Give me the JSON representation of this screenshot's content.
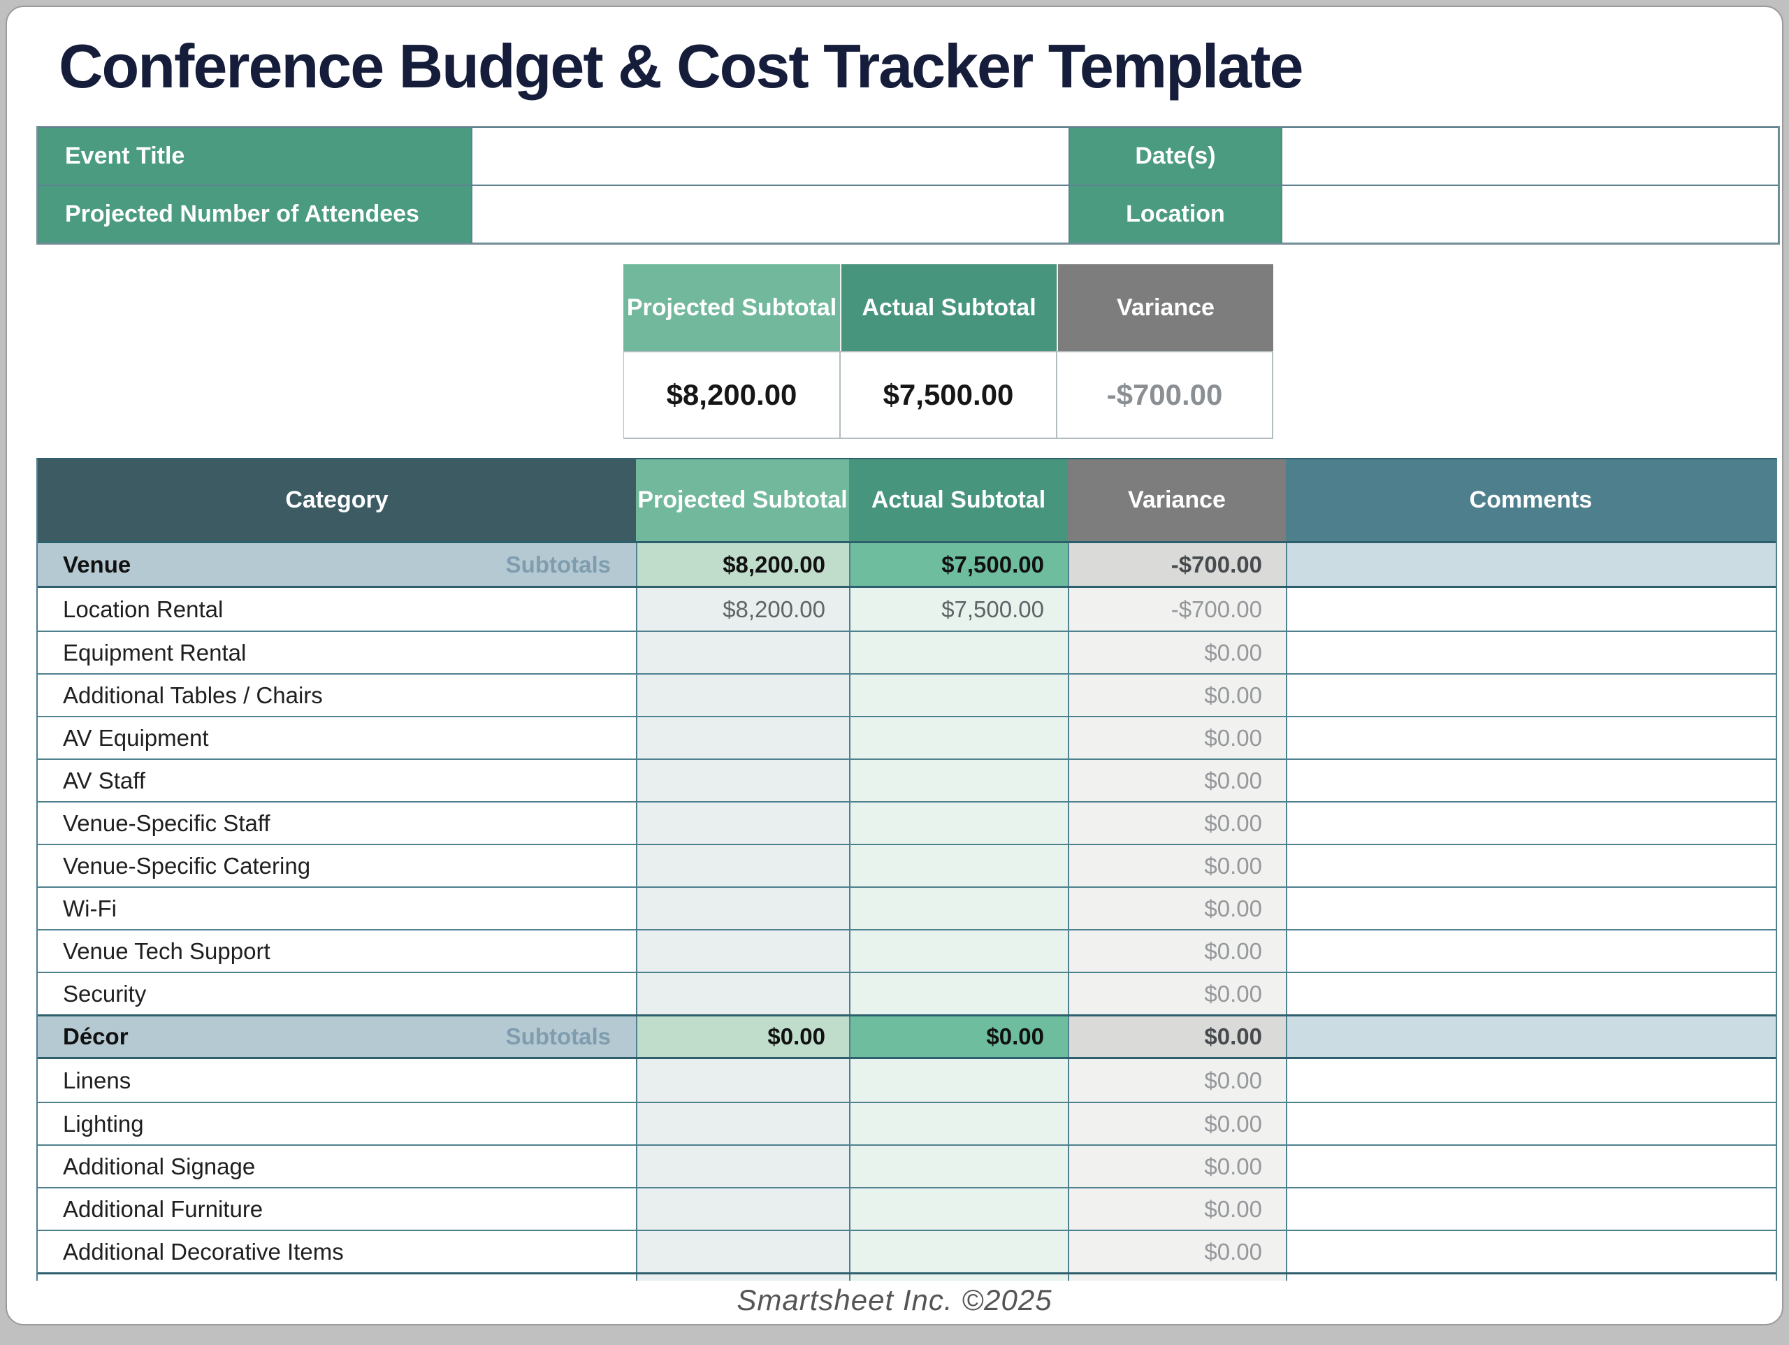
{
  "page": {
    "title": "Conference Budget & Cost Tracker Template",
    "footer": "Smartsheet Inc. ©2025"
  },
  "info": {
    "event_title_label": "Event Title",
    "event_title_value": "",
    "dates_label": "Date(s)",
    "dates_value": "",
    "attendees_label": "Projected Number of Attendees",
    "attendees_value": "",
    "location_label": "Location",
    "location_value": ""
  },
  "summary": {
    "headers": {
      "projected": "Projected Subtotal",
      "actual": "Actual Subtotal",
      "variance": "Variance"
    },
    "values": {
      "projected": "$8,200.00",
      "actual": "$7,500.00",
      "variance": "-$700.00"
    }
  },
  "main_table": {
    "headers": {
      "category": "Category",
      "projected": "Projected Subtotal",
      "actual": "Actual Subtotal",
      "variance": "Variance",
      "comments": "Comments"
    },
    "subtotals_label": "Subtotals",
    "rows": [
      {
        "type": "subtotal",
        "category": "Venue",
        "projected": "$8,200.00",
        "actual": "$7,500.00",
        "variance": "-$700.00",
        "comments": ""
      },
      {
        "type": "item",
        "category": "Location Rental",
        "projected": "$8,200.00",
        "actual": "$7,500.00",
        "variance": "-$700.00",
        "comments": ""
      },
      {
        "type": "item",
        "category": "Equipment Rental",
        "projected": "",
        "actual": "",
        "variance": "$0.00",
        "comments": ""
      },
      {
        "type": "item",
        "category": "Additional Tables / Chairs",
        "projected": "",
        "actual": "",
        "variance": "$0.00",
        "comments": ""
      },
      {
        "type": "item",
        "category": "AV Equipment",
        "projected": "",
        "actual": "",
        "variance": "$0.00",
        "comments": ""
      },
      {
        "type": "item",
        "category": "AV Staff",
        "projected": "",
        "actual": "",
        "variance": "$0.00",
        "comments": ""
      },
      {
        "type": "item",
        "category": "Venue-Specific Staff",
        "projected": "",
        "actual": "",
        "variance": "$0.00",
        "comments": ""
      },
      {
        "type": "item",
        "category": "Venue-Specific Catering",
        "projected": "",
        "actual": "",
        "variance": "$0.00",
        "comments": ""
      },
      {
        "type": "item",
        "category": "Wi-Fi",
        "projected": "",
        "actual": "",
        "variance": "$0.00",
        "comments": ""
      },
      {
        "type": "item",
        "category": "Venue Tech Support",
        "projected": "",
        "actual": "",
        "variance": "$0.00",
        "comments": ""
      },
      {
        "type": "item",
        "category": "Security",
        "projected": "",
        "actual": "",
        "variance": "$0.00",
        "comments": ""
      },
      {
        "type": "subtotal",
        "category": "Décor",
        "projected": "$0.00",
        "actual": "$0.00",
        "variance": "$0.00",
        "comments": ""
      },
      {
        "type": "item",
        "category": "Linens",
        "projected": "",
        "actual": "",
        "variance": "$0.00",
        "comments": ""
      },
      {
        "type": "item",
        "category": "Lighting",
        "projected": "",
        "actual": "",
        "variance": "$0.00",
        "comments": ""
      },
      {
        "type": "item",
        "category": "Additional Signage",
        "projected": "",
        "actual": "",
        "variance": "$0.00",
        "comments": ""
      },
      {
        "type": "item",
        "category": "Additional Furniture",
        "projected": "",
        "actual": "",
        "variance": "$0.00",
        "comments": ""
      },
      {
        "type": "item",
        "category": "Additional Decorative Items",
        "projected": "",
        "actual": "",
        "variance": "$0.00",
        "comments": ""
      }
    ]
  },
  "colors": {
    "title_navy": "#151d3b",
    "info_green": "#4b9b80",
    "proj_green": "#72b89d",
    "actual_green": "#47957d",
    "variance_gray": "#7d7d7d",
    "slate": "#3c5b63",
    "comments_teal": "#4d7f8d",
    "sub_cat_bg": "#b5c9d2",
    "sub_proj_bg": "#c0ddcc",
    "sub_act_bg": "#6dbd9e",
    "sub_var_bg": "#dadad8",
    "sub_com_bg": "#cbdce3",
    "row_proj_bg": "#e8efee",
    "row_act_bg": "#e9f3ee",
    "row_var_bg": "#f1f1ef",
    "border_teal": "#4e808f",
    "border_dark": "#2d5f6d",
    "subtotals_text": "#7f9dae",
    "money_gray": "#5f6467",
    "variance_text": "#95989b",
    "footer_text": "#555555",
    "page_bg": "#c0c0c0",
    "card_border": "#9b9b9b"
  }
}
